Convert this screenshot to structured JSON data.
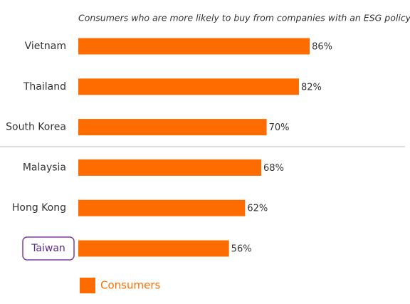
{
  "chart_data": {
    "type": "bar",
    "orientation": "horizontal",
    "subtitle": "Consumers who are more likely to buy from companies with an ESG policy",
    "categories": [
      "Vietnam",
      "Thailand",
      "South Korea",
      "Malaysia",
      "Hong Kong",
      "Taiwan"
    ],
    "series": [
      {
        "name": "Consumers",
        "color": "#fe6c00",
        "values": [
          86,
          82,
          70,
          68,
          62,
          56
        ],
        "value_labels": [
          "86%",
          "82%",
          "70%",
          "68%",
          "62%",
          "56%"
        ]
      }
    ],
    "xlim": [
      0,
      100
    ],
    "legend": "bottom-left"
  }
}
